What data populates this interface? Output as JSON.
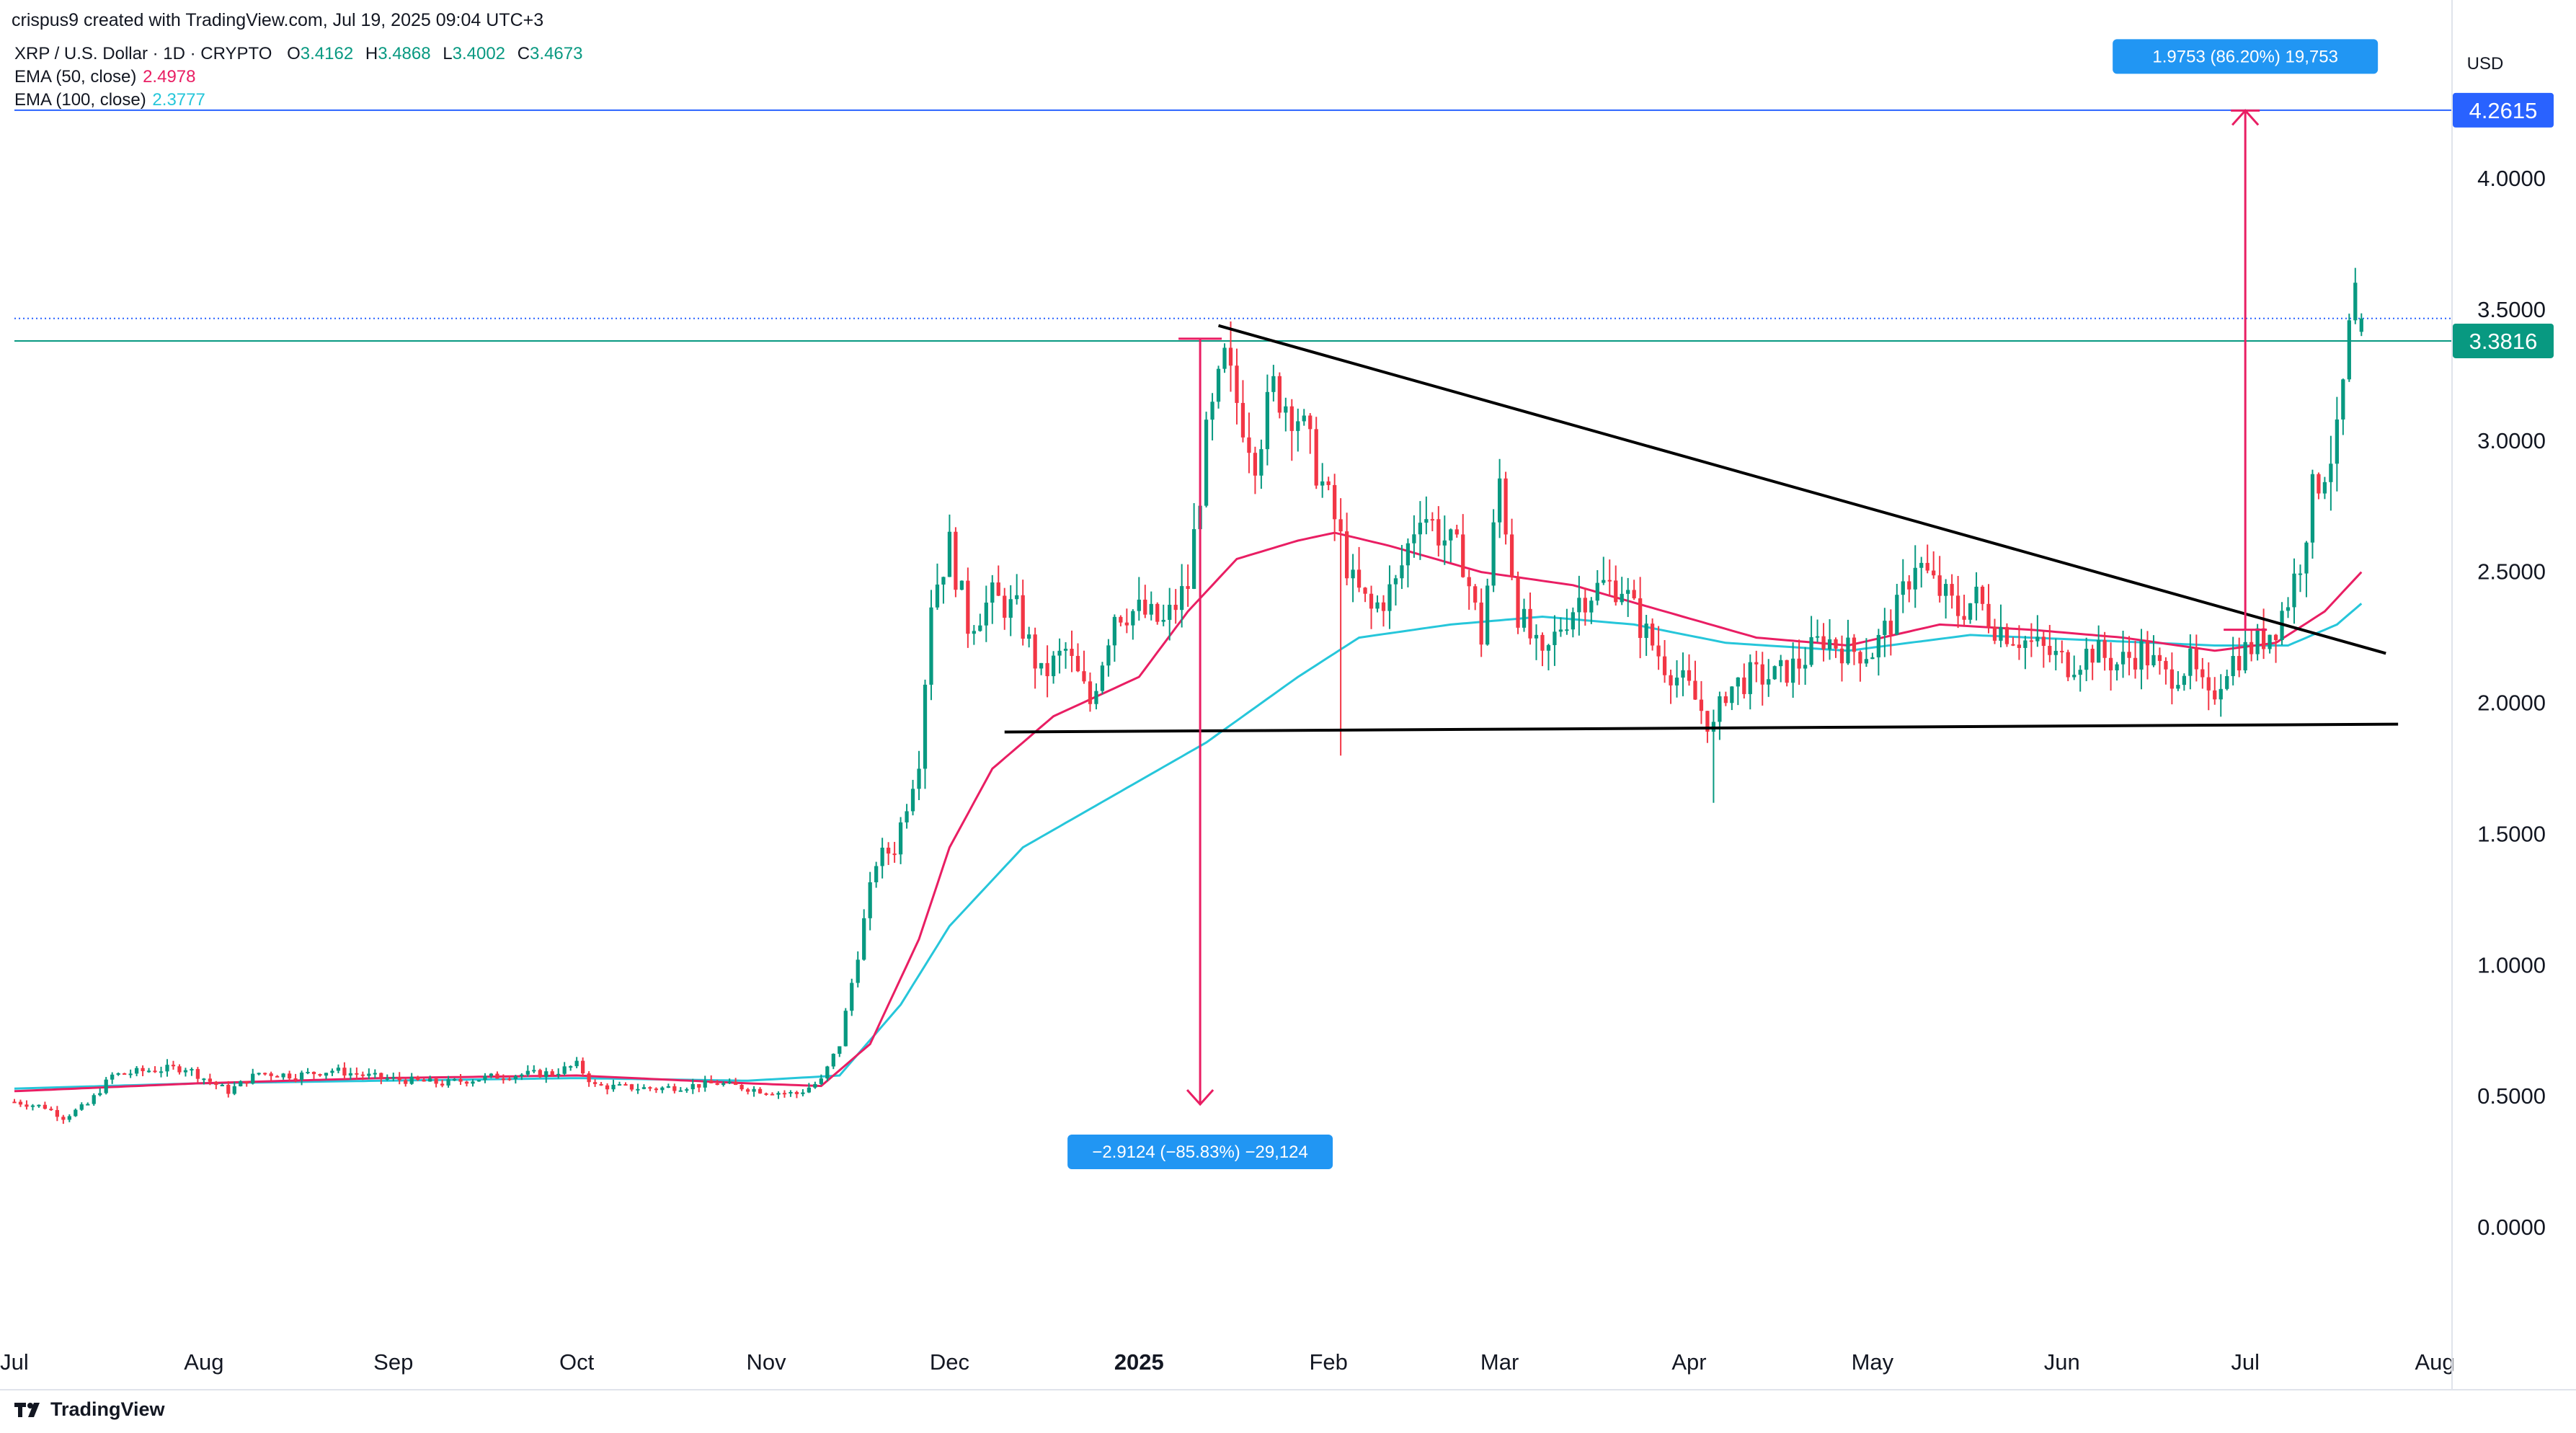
{
  "credit": "crispus9 created with TradingView.com, Jul 19, 2025 09:04 UTC+3",
  "legend": {
    "symbol": "XRP / U.S. Dollar · 1D · CRYPTO",
    "ohlc": [
      {
        "k": "O",
        "v": "3.4162"
      },
      {
        "k": "H",
        "v": "3.4868"
      },
      {
        "k": "L",
        "v": "3.4002"
      },
      {
        "k": "C",
        "v": "3.4673"
      }
    ],
    "ema50_label": "EMA (50, close)",
    "ema50_value": "2.4978",
    "ema100_label": "EMA (100, close)",
    "ema100_value": "2.3777"
  },
  "colors": {
    "up": "#089981",
    "down": "#f23645",
    "ema50": "#e91e63",
    "ema100": "#26c6da",
    "annotation": "#e91e63",
    "label_bg": "#2196f3",
    "line_blue": "#2962ff",
    "green_tag": "#089981"
  },
  "footer": {
    "brand": "TradingView"
  },
  "chart_data": {
    "type": "candlestick",
    "title": "XRP / U.S. Dollar · 1D · CRYPTO",
    "currency": "USD",
    "ylim": [
      -0.3,
      4.5
    ],
    "y_ticks": [
      "0.0000",
      "0.5000",
      "1.0000",
      "1.5000",
      "2.0000",
      "2.5000",
      "3.0000",
      "3.5000",
      "4.0000"
    ],
    "x_ticks": [
      {
        "label": "Jul",
        "day": 0
      },
      {
        "label": "Aug",
        "day": 31
      },
      {
        "label": "Sep",
        "day": 62
      },
      {
        "label": "Oct",
        "day": 92
      },
      {
        "label": "Nov",
        "day": 123
      },
      {
        "label": "Dec",
        "day": 153
      },
      {
        "label": "2025",
        "day": 184,
        "bold": true
      },
      {
        "label": "Feb",
        "day": 215
      },
      {
        "label": "Mar",
        "day": 243
      },
      {
        "label": "Apr",
        "day": 274
      },
      {
        "label": "May",
        "day": 304
      },
      {
        "label": "Jun",
        "day": 335
      },
      {
        "label": "Jul",
        "day": 365
      },
      {
        "label": "Aug",
        "day": 396
      }
    ],
    "xlim_days": [
      0,
      398
    ],
    "price_anchors": [
      [
        0,
        0.48
      ],
      [
        5,
        0.46
      ],
      [
        8,
        0.42
      ],
      [
        12,
        0.47
      ],
      [
        16,
        0.58
      ],
      [
        22,
        0.6
      ],
      [
        28,
        0.61
      ],
      [
        31,
        0.57
      ],
      [
        35,
        0.52
      ],
      [
        40,
        0.59
      ],
      [
        46,
        0.58
      ],
      [
        52,
        0.6
      ],
      [
        60,
        0.57
      ],
      [
        70,
        0.55
      ],
      [
        80,
        0.58
      ],
      [
        88,
        0.59
      ],
      [
        92,
        0.62
      ],
      [
        95,
        0.54
      ],
      [
        105,
        0.53
      ],
      [
        115,
        0.55
      ],
      [
        123,
        0.52
      ],
      [
        128,
        0.51
      ],
      [
        132,
        0.56
      ],
      [
        135,
        0.7
      ],
      [
        138,
        1.05
      ],
      [
        141,
        1.4
      ],
      [
        144,
        1.45
      ],
      [
        148,
        1.8
      ],
      [
        150,
        2.4
      ],
      [
        153,
        2.6
      ],
      [
        156,
        2.3
      ],
      [
        160,
        2.4
      ],
      [
        164,
        2.35
      ],
      [
        168,
        2.1
      ],
      [
        172,
        2.2
      ],
      [
        176,
        2.0
      ],
      [
        180,
        2.35
      ],
      [
        184,
        2.35
      ],
      [
        188,
        2.3
      ],
      [
        192,
        2.45
      ],
      [
        195,
        3.0
      ],
      [
        198,
        3.3
      ],
      [
        200,
        3.15
      ],
      [
        203,
        2.95
      ],
      [
        206,
        3.2
      ],
      [
        210,
        3.1
      ],
      [
        213,
        2.9
      ],
      [
        216,
        2.7
      ],
      [
        219,
        2.45
      ],
      [
        222,
        2.35
      ],
      [
        226,
        2.45
      ],
      [
        230,
        2.75
      ],
      [
        233,
        2.65
      ],
      [
        237,
        2.55
      ],
      [
        240,
        2.25
      ],
      [
        243,
        2.85
      ],
      [
        246,
        2.35
      ],
      [
        250,
        2.15
      ],
      [
        253,
        2.3
      ],
      [
        256,
        2.4
      ],
      [
        260,
        2.45
      ],
      [
        263,
        2.45
      ],
      [
        266,
        2.3
      ],
      [
        270,
        2.15
      ],
      [
        274,
        2.05
      ],
      [
        278,
        1.9
      ],
      [
        280,
        2.05
      ],
      [
        284,
        2.1
      ],
      [
        288,
        2.1
      ],
      [
        292,
        2.15
      ],
      [
        296,
        2.25
      ],
      [
        300,
        2.2
      ],
      [
        304,
        2.2
      ],
      [
        308,
        2.35
      ],
      [
        311,
        2.55
      ],
      [
        314,
        2.45
      ],
      [
        318,
        2.35
      ],
      [
        321,
        2.4
      ],
      [
        324,
        2.3
      ],
      [
        328,
        2.25
      ],
      [
        332,
        2.2
      ],
      [
        336,
        2.15
      ],
      [
        340,
        2.2
      ],
      [
        344,
        2.15
      ],
      [
        348,
        2.2
      ],
      [
        352,
        2.1
      ],
      [
        356,
        2.15
      ],
      [
        359,
        2.0
      ],
      [
        362,
        2.15
      ],
      [
        365,
        2.2
      ],
      [
        368,
        2.25
      ],
      [
        370,
        2.3
      ],
      [
        372,
        2.4
      ],
      [
        374,
        2.55
      ],
      [
        376,
        2.8
      ],
      [
        378,
        2.9
      ],
      [
        380,
        3.0
      ],
      [
        382,
        3.4
      ],
      [
        383,
        3.55
      ],
      [
        384,
        3.47
      ]
    ],
    "ema50_anchors": [
      [
        0,
        0.52
      ],
      [
        30,
        0.55
      ],
      [
        60,
        0.57
      ],
      [
        92,
        0.58
      ],
      [
        120,
        0.55
      ],
      [
        132,
        0.54
      ],
      [
        140,
        0.7
      ],
      [
        148,
        1.1
      ],
      [
        153,
        1.45
      ],
      [
        160,
        1.75
      ],
      [
        170,
        1.95
      ],
      [
        184,
        2.1
      ],
      [
        192,
        2.35
      ],
      [
        200,
        2.55
      ],
      [
        210,
        2.62
      ],
      [
        216,
        2.65
      ],
      [
        225,
        2.6
      ],
      [
        240,
        2.5
      ],
      [
        255,
        2.45
      ],
      [
        270,
        2.35
      ],
      [
        285,
        2.25
      ],
      [
        300,
        2.22
      ],
      [
        315,
        2.3
      ],
      [
        330,
        2.28
      ],
      [
        345,
        2.25
      ],
      [
        360,
        2.2
      ],
      [
        370,
        2.23
      ],
      [
        378,
        2.35
      ],
      [
        384,
        2.5
      ]
    ],
    "ema100_anchors": [
      [
        0,
        0.53
      ],
      [
        30,
        0.55
      ],
      [
        60,
        0.56
      ],
      [
        92,
        0.57
      ],
      [
        120,
        0.56
      ],
      [
        135,
        0.58
      ],
      [
        145,
        0.85
      ],
      [
        153,
        1.15
      ],
      [
        165,
        1.45
      ],
      [
        180,
        1.65
      ],
      [
        195,
        1.85
      ],
      [
        210,
        2.1
      ],
      [
        220,
        2.25
      ],
      [
        235,
        2.3
      ],
      [
        250,
        2.33
      ],
      [
        265,
        2.3
      ],
      [
        280,
        2.23
      ],
      [
        300,
        2.2
      ],
      [
        320,
        2.26
      ],
      [
        340,
        2.24
      ],
      [
        360,
        2.22
      ],
      [
        372,
        2.22
      ],
      [
        380,
        2.3
      ],
      [
        384,
        2.38
      ]
    ],
    "price_lines": [
      {
        "value": 4.2615,
        "label": "4.2615",
        "color": "#2962ff"
      },
      {
        "value": 3.3816,
        "label": "3.3816",
        "color": "#089981"
      },
      {
        "value": 3.4673,
        "label": "",
        "color": "#2962ff",
        "dotted": true
      }
    ],
    "trendlines": [
      {
        "name": "descending-resistance",
        "from": [
          197,
          3.44
        ],
        "to": [
          388,
          2.19
        ]
      },
      {
        "name": "horizontal-support",
        "from": [
          162,
          1.89
        ],
        "to": [
          390,
          1.92
        ]
      }
    ],
    "measures": [
      {
        "name": "measure-down",
        "day": 194,
        "from": 3.39,
        "to": 0.47,
        "label": "−2.9124 (−85.83%) −29,124"
      },
      {
        "name": "measure-up",
        "day": 365,
        "from": 2.28,
        "to": 4.26,
        "label": "1.9753 (86.20%) 19,753"
      }
    ],
    "axis_currency_label": "USD"
  }
}
